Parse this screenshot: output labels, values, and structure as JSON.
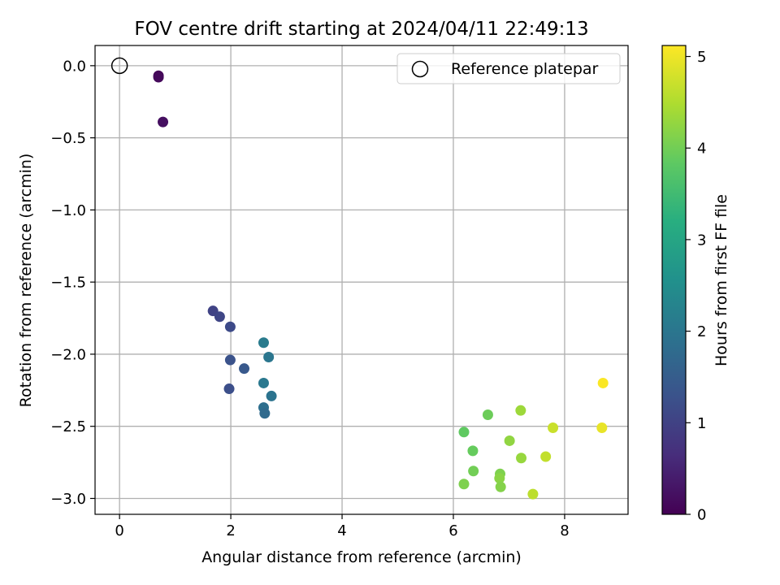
{
  "chart_data": {
    "type": "scatter",
    "title": "FOV centre drift starting at 2024/04/11 22:49:13",
    "xlabel": "Angular distance from reference (arcmin)",
    "ylabel": "Rotation from reference (arcmin)",
    "xlim": [
      -0.44,
      9.14
    ],
    "ylim": [
      -3.11,
      0.14
    ],
    "xticks": [
      0,
      2,
      4,
      6,
      8
    ],
    "yticks": [
      0.0,
      -0.5,
      -1.0,
      -1.5,
      -2.0,
      -2.5,
      -3.0
    ],
    "xtick_labels": [
      "0",
      "2",
      "4",
      "6",
      "8"
    ],
    "ytick_labels": [
      "0.0",
      "−0.5",
      "−1.0",
      "−1.5",
      "−2.0",
      "−2.5",
      "−3.0"
    ],
    "grid": true,
    "legend": {
      "position": "top-right",
      "entries": [
        "Reference platepar"
      ]
    },
    "reference_point": {
      "x": 0,
      "y": 0,
      "label": "Reference platepar",
      "marker": "open-circle"
    },
    "colorbar": {
      "label": "Hours from first FF file",
      "colormap": "viridis",
      "range": [
        0,
        5.12
      ],
      "ticks": [
        0,
        1,
        2,
        3,
        4,
        5
      ],
      "tick_labels": [
        "0",
        "1",
        "2",
        "3",
        "4",
        "5"
      ]
    },
    "points": [
      {
        "x": 0.7,
        "y": -0.07,
        "h": 0.05
      },
      {
        "x": 0.7,
        "y": -0.08,
        "h": 0.12
      },
      {
        "x": 0.78,
        "y": -0.39,
        "h": 0.2
      },
      {
        "x": 1.68,
        "y": -1.7,
        "h": 1.02
      },
      {
        "x": 1.8,
        "y": -1.74,
        "h": 1.08
      },
      {
        "x": 1.99,
        "y": -1.81,
        "h": 1.15
      },
      {
        "x": 1.99,
        "y": -2.04,
        "h": 1.3
      },
      {
        "x": 2.24,
        "y": -2.1,
        "h": 1.42
      },
      {
        "x": 1.97,
        "y": -2.24,
        "h": 1.22
      },
      {
        "x": 2.59,
        "y": -1.92,
        "h": 2.1
      },
      {
        "x": 2.68,
        "y": -2.02,
        "h": 2.0
      },
      {
        "x": 2.59,
        "y": -2.2,
        "h": 2.05
      },
      {
        "x": 2.73,
        "y": -2.29,
        "h": 1.95
      },
      {
        "x": 2.59,
        "y": -2.37,
        "h": 1.85
      },
      {
        "x": 2.61,
        "y": -2.41,
        "h": 1.75
      },
      {
        "x": 6.19,
        "y": -2.54,
        "h": 3.85
      },
      {
        "x": 6.62,
        "y": -2.42,
        "h": 3.95
      },
      {
        "x": 6.35,
        "y": -2.67,
        "h": 3.9
      },
      {
        "x": 6.36,
        "y": -2.81,
        "h": 4.0
      },
      {
        "x": 6.19,
        "y": -2.9,
        "h": 4.1
      },
      {
        "x": 6.84,
        "y": -2.83,
        "h": 4.1
      },
      {
        "x": 6.83,
        "y": -2.86,
        "h": 4.2
      },
      {
        "x": 6.85,
        "y": -2.92,
        "h": 4.15
      },
      {
        "x": 7.01,
        "y": -2.6,
        "h": 4.25
      },
      {
        "x": 7.21,
        "y": -2.39,
        "h": 4.35
      },
      {
        "x": 7.22,
        "y": -2.72,
        "h": 4.3
      },
      {
        "x": 7.43,
        "y": -2.97,
        "h": 4.6
      },
      {
        "x": 7.66,
        "y": -2.71,
        "h": 4.65
      },
      {
        "x": 7.79,
        "y": -2.51,
        "h": 4.7
      },
      {
        "x": 8.67,
        "y": -2.51,
        "h": 4.95
      },
      {
        "x": 8.69,
        "y": -2.2,
        "h": 5.1
      }
    ]
  }
}
